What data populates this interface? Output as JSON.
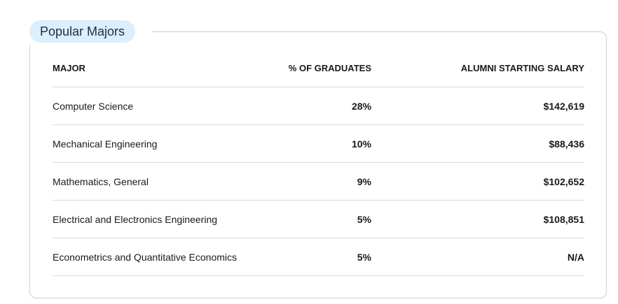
{
  "section": {
    "title": "Popular Majors"
  },
  "table": {
    "columns": {
      "major": "MAJOR",
      "pct": "% OF GRADUATES",
      "salary": "ALUMNI STARTING SALARY"
    },
    "rows": [
      {
        "major": "Computer Science",
        "pct": "28%",
        "salary": "$142,619"
      },
      {
        "major": "Mechanical Engineering",
        "pct": "10%",
        "salary": "$88,436"
      },
      {
        "major": "Mathematics, General",
        "pct": "9%",
        "salary": "$102,652"
      },
      {
        "major": "Electrical and Electronics Engineering",
        "pct": "5%",
        "salary": "$108,851"
      },
      {
        "major": "Econometrics and Quantitative Economics",
        "pct": "5%",
        "salary": "N/A"
      }
    ]
  },
  "colors": {
    "pill_background": "#dbeffc",
    "pill_text": "#1e2e45",
    "border": "#cfcfcf"
  }
}
